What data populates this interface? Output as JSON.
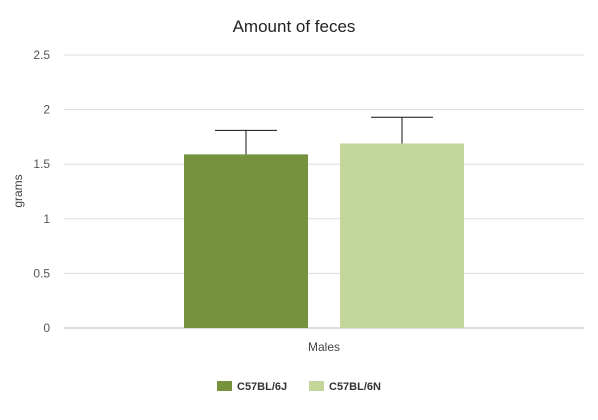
{
  "chart_data": {
    "type": "bar",
    "title": "Amount of feces",
    "xlabel": "Males",
    "ylabel": "grams",
    "categories": [
      "Males"
    ],
    "series": [
      {
        "name": "C57BL/6J",
        "values": [
          1.59
        ],
        "error_upper": [
          0.22
        ],
        "color": "#76923c"
      },
      {
        "name": "C57BL/6N",
        "values": [
          1.69
        ],
        "error_upper": [
          0.24
        ],
        "color": "#c4d79b"
      }
    ],
    "ylim": [
      0,
      2.5
    ],
    "yticks": [
      0,
      0.5,
      1,
      1.5,
      2,
      2.5
    ],
    "ytick_labels": [
      "0",
      "0.5",
      "1",
      "1.5",
      "2",
      "2.5"
    ],
    "grid": true,
    "legend_position": "bottom"
  }
}
